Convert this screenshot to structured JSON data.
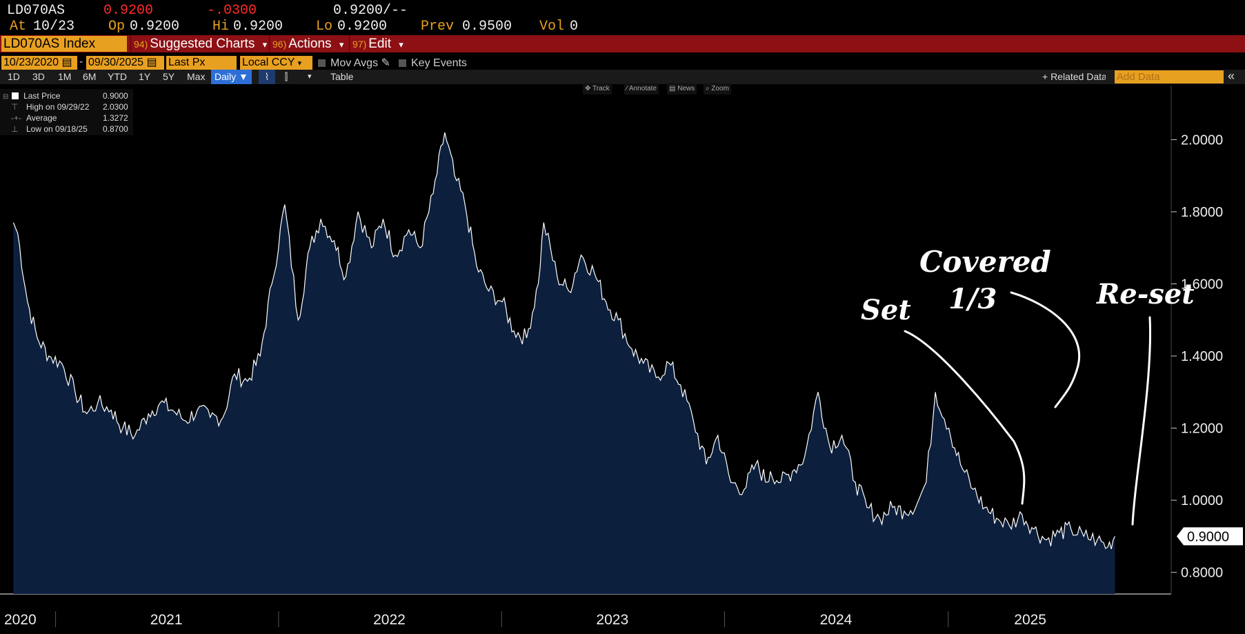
{
  "quote": {
    "ticker": "LD070AS",
    "last": "0.9200",
    "change": "-.0300",
    "bid_ask": "0.9200/--",
    "at_label": "At",
    "at_value": "10/23",
    "op_label": "Op",
    "op_value": "0.9200",
    "hi_label": "Hi",
    "hi_value": "0.9200",
    "lo_label": "Lo",
    "lo_value": "0.9200",
    "prev_label": "Prev",
    "prev_value": "0.9500",
    "vol_label": "Vol",
    "vol_value": "0"
  },
  "menubar": {
    "security": "LD070AS Index",
    "items": [
      {
        "num": "94)",
        "label": "Suggested Charts",
        "arrow": "▾"
      },
      {
        "num": "96)",
        "label": "Actions",
        "arrow": "▾"
      },
      {
        "num": "97)",
        "label": "Edit",
        "arrow": "▾"
      }
    ]
  },
  "controls": {
    "start_date": "10/23/2020",
    "end_date": "09/30/2025",
    "dash": "-",
    "price_field": "Last Px",
    "currency": "Local CCY",
    "mov_avgs": "Mov Avgs",
    "key_events": "Key Events"
  },
  "toolbar": {
    "ranges": [
      "1D",
      "3D",
      "1M",
      "6M",
      "YTD",
      "1Y",
      "5Y",
      "Max"
    ],
    "frequency": "Daily ▼",
    "table": "Table",
    "related": "+ Related Data",
    "add_data_placeholder": "Add Data",
    "collapse": "«",
    "hints": [
      "✥ Track",
      "⁄ Annotate",
      "▤ News",
      "⌕ Zoom"
    ]
  },
  "legend": {
    "rows": [
      {
        "label": "Last Price",
        "value": "0.9000"
      },
      {
        "label": "High on 09/29/22",
        "value": "2.0300"
      },
      {
        "label": "Average",
        "value": "1.3272"
      },
      {
        "label": "Low on 09/18/25",
        "value": "0.8700"
      }
    ]
  },
  "annotations": [
    "Set",
    "Covered",
    "1/3",
    "Re-set"
  ],
  "colors": {
    "accent": "#e8a020",
    "menubar": "#8c1014",
    "area_fill": "#0c1f3d",
    "line": "#ffffff",
    "negative": "#ff2a2a"
  },
  "chart_data": {
    "type": "area",
    "series_name": "Last Price",
    "x_labels": [
      "2020",
      "2021",
      "2022",
      "2023",
      "2024",
      "2025"
    ],
    "y_ticks": [
      "0.8000",
      "1.0000",
      "1.2000",
      "1.4000",
      "1.6000",
      "1.8000",
      "2.0000"
    ],
    "ylim": [
      0.74,
      2.15
    ],
    "last_value_label": "0.9000",
    "grid": false,
    "x": [
      "2020-10-23",
      "2020-10-30",
      "2020-11-15",
      "2020-12-01",
      "2020-12-20",
      "2021-01-10",
      "2021-02-01",
      "2021-02-20",
      "2021-03-10",
      "2021-04-01",
      "2021-04-20",
      "2021-05-10",
      "2021-06-01",
      "2021-06-20",
      "2021-07-10",
      "2021-08-01",
      "2021-08-20",
      "2021-09-10",
      "2021-10-01",
      "2021-10-20",
      "2021-11-10",
      "2021-12-01",
      "2021-12-20",
      "2022-01-10",
      "2022-02-01",
      "2022-02-20",
      "2022-03-10",
      "2022-04-01",
      "2022-04-20",
      "2022-05-10",
      "2022-06-01",
      "2022-06-20",
      "2022-07-10",
      "2022-08-01",
      "2022-08-20",
      "2022-09-10",
      "2022-09-29",
      "2022-10-15",
      "2022-11-01",
      "2022-11-20",
      "2022-12-10",
      "2023-01-01",
      "2023-01-20",
      "2023-02-10",
      "2023-03-01",
      "2023-03-10",
      "2023-04-01",
      "2023-04-20",
      "2023-05-10",
      "2023-06-01",
      "2023-06-20",
      "2023-07-10",
      "2023-08-01",
      "2023-08-20",
      "2023-09-10",
      "2023-10-01",
      "2023-10-20",
      "2023-11-10",
      "2023-12-01",
      "2023-12-20",
      "2024-01-10",
      "2024-02-01",
      "2024-02-20",
      "2024-03-10",
      "2024-03-15",
      "2024-04-01",
      "2024-04-20",
      "2024-05-10",
      "2024-06-01",
      "2024-06-20",
      "2024-07-10",
      "2024-08-01",
      "2024-08-20",
      "2024-09-10",
      "2024-10-01",
      "2024-10-20",
      "2024-11-10",
      "2024-11-25",
      "2024-12-10",
      "2025-01-01",
      "2025-01-20",
      "2025-02-10",
      "2025-03-01",
      "2025-03-20",
      "2025-04-10",
      "2025-05-01",
      "2025-05-20",
      "2025-06-10",
      "2025-07-01",
      "2025-07-20",
      "2025-08-10",
      "2025-09-01",
      "2025-09-18",
      "2025-09-30"
    ],
    "values": [
      1.77,
      1.74,
      1.55,
      1.45,
      1.4,
      1.38,
      1.3,
      1.24,
      1.27,
      1.25,
      1.2,
      1.18,
      1.24,
      1.27,
      1.25,
      1.22,
      1.25,
      1.23,
      1.23,
      1.35,
      1.33,
      1.4,
      1.6,
      1.82,
      1.5,
      1.7,
      1.78,
      1.72,
      1.62,
      1.8,
      1.7,
      1.78,
      1.68,
      1.75,
      1.7,
      1.85,
      2.02,
      1.9,
      1.82,
      1.65,
      1.58,
      1.55,
      1.47,
      1.45,
      1.6,
      1.77,
      1.62,
      1.58,
      1.68,
      1.63,
      1.55,
      1.5,
      1.42,
      1.38,
      1.34,
      1.38,
      1.32,
      1.22,
      1.1,
      1.18,
      1.05,
      1.03,
      1.1,
      1.05,
      1.08,
      1.05,
      1.08,
      1.12,
      1.3,
      1.15,
      1.18,
      1.05,
      0.98,
      0.95,
      0.98,
      0.97,
      0.99,
      1.05,
      1.3,
      1.2,
      1.1,
      1.03,
      0.98,
      0.95,
      0.93,
      0.96,
      0.92,
      0.89,
      0.91,
      0.92,
      0.9,
      0.89,
      0.87,
      0.9
    ]
  }
}
